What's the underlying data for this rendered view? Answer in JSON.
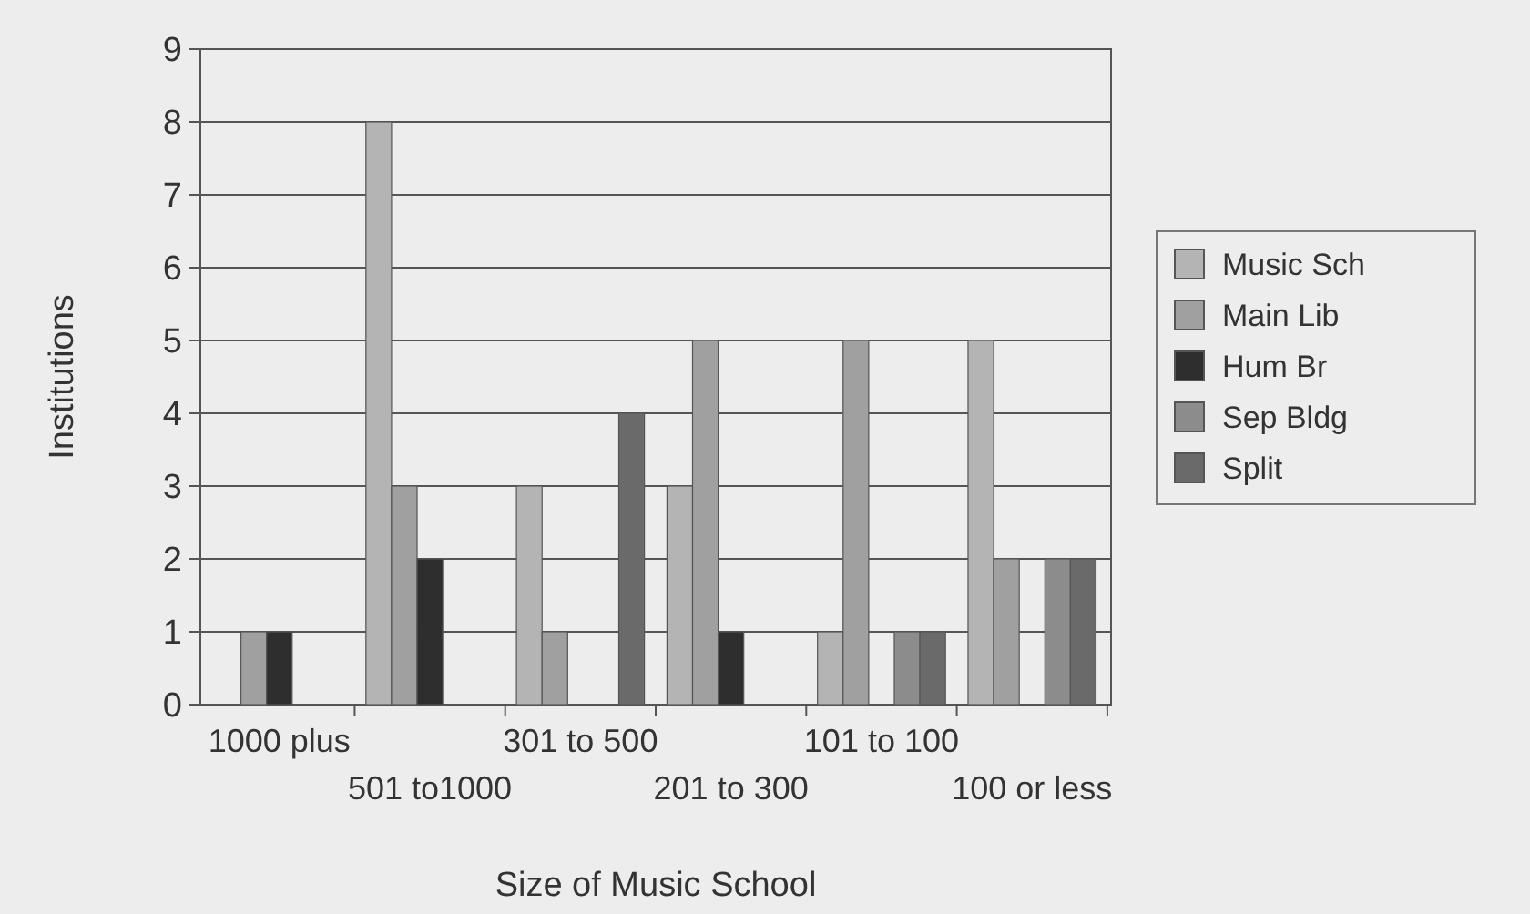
{
  "chart_data": {
    "type": "bar",
    "xlabel": "Size of Music School",
    "ylabel": "Institutions",
    "categories": [
      "1000 plus",
      "501 to1000",
      "301 to 500",
      "201 to 300",
      "101 to 100",
      "100 or less"
    ],
    "series": [
      {
        "name": "Music Sch",
        "color": "#b4b4b4",
        "values": [
          0,
          8,
          3,
          3,
          1,
          5
        ]
      },
      {
        "name": "Main Lib",
        "color": "#a0a0a0",
        "values": [
          1,
          3,
          1,
          5,
          5,
          2
        ]
      },
      {
        "name": "Hum Br",
        "color": "#2e2e2e",
        "values": [
          1,
          2,
          0,
          1,
          0,
          0
        ]
      },
      {
        "name": "Sep Bldg",
        "color": "#8c8c8c",
        "values": [
          0,
          0,
          0,
          0,
          1,
          2
        ]
      },
      {
        "name": "Split",
        "color": "#6a6a6a",
        "values": [
          0,
          0,
          4,
          0,
          1,
          2
        ]
      }
    ],
    "ylim": [
      0,
      9
    ],
    "yticks": [
      0,
      1,
      2,
      3,
      4,
      5,
      6,
      7,
      8,
      9
    ],
    "grid": "y",
    "legend": "right"
  }
}
